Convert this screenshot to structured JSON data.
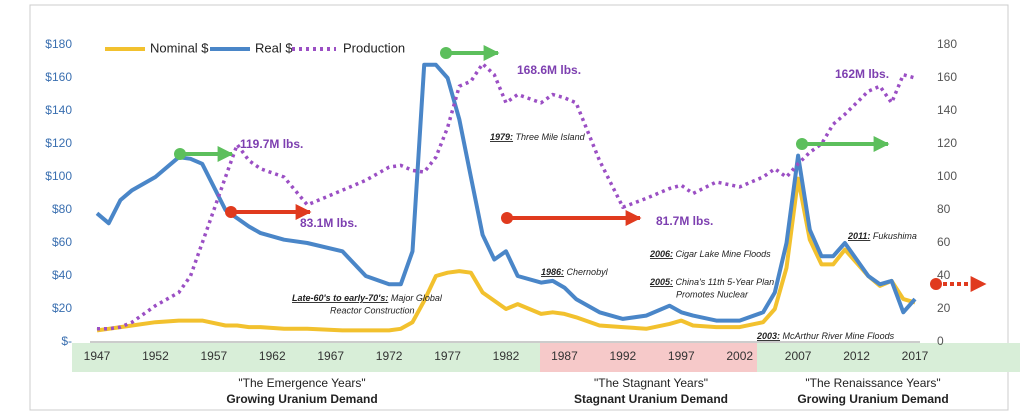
{
  "chart_data": {
    "type": "line",
    "x": [
      1947,
      1948,
      1949,
      1950,
      1952,
      1954,
      1955,
      1956,
      1958,
      1959,
      1960,
      1961,
      1963,
      1965,
      1968,
      1970,
      1972,
      1973,
      1974,
      1975,
      1976,
      1977,
      1978,
      1979,
      1980,
      1981,
      1982,
      1983,
      1985,
      1986,
      1987,
      1988,
      1990,
      1992,
      1994,
      1996,
      1997,
      1998,
      2000,
      2002,
      2004,
      2005,
      2006,
      2007,
      2008,
      2009,
      2010,
      2011,
      2012,
      2013,
      2014,
      2015,
      2016,
      2017
    ],
    "series": [
      {
        "name": "Nominal $",
        "color": "#f2c12e",
        "values": [
          7,
          8,
          9,
          10,
          12,
          13,
          13,
          13,
          10,
          10,
          9,
          9,
          8,
          8,
          7,
          7,
          7,
          8,
          12,
          25,
          40,
          42,
          43,
          42,
          30,
          25,
          20,
          23,
          17,
          18,
          17,
          15,
          10,
          9,
          8,
          11,
          13,
          10,
          9,
          9,
          12,
          20,
          45,
          99,
          62,
          47,
          47,
          56,
          48,
          40,
          34,
          37,
          26,
          24
        ]
      },
      {
        "name": "Real $",
        "color": "#4a86c8",
        "values": [
          78,
          72,
          86,
          92,
          100,
          112,
          111,
          108,
          80,
          75,
          70,
          66,
          62,
          60,
          55,
          40,
          35,
          35,
          55,
          168,
          168,
          160,
          135,
          100,
          65,
          50,
          55,
          40,
          36,
          37,
          33,
          26,
          18,
          14,
          16,
          22,
          18,
          16,
          13,
          13,
          18,
          30,
          60,
          113,
          68,
          52,
          52,
          60,
          50,
          40,
          35,
          37,
          18,
          26
        ]
      },
      {
        "name": "Production",
        "color": "#9b4fc4",
        "axis": "y2",
        "dashed": true,
        "values": [
          8,
          8,
          9,
          12,
          22,
          30,
          40,
          60,
          100,
          119.7,
          110,
          105,
          100,
          83.1,
          92,
          98,
          106,
          107,
          104,
          103,
          112,
          130,
          155,
          158,
          168.6,
          162,
          145,
          150,
          145,
          150,
          148,
          145,
          110,
          81.7,
          87,
          93,
          95,
          90,
          97,
          94,
          100,
          105,
          100,
          108,
          115,
          120,
          132,
          138,
          145,
          152,
          155,
          145,
          162,
          160
        ]
      }
    ],
    "xlim": [
      1947,
      2017
    ],
    "xticks": [
      1947,
      1952,
      1957,
      1962,
      1967,
      1972,
      1977,
      1982,
      1987,
      1992,
      1997,
      2002,
      2007,
      2012,
      2017
    ],
    "ylim": [
      0,
      180
    ],
    "yticks": [
      {
        "value": 0,
        "label": "$-"
      },
      {
        "value": 20,
        "label": "$20"
      },
      {
        "value": 40,
        "label": "$40"
      },
      {
        "value": 60,
        "label": "$60"
      },
      {
        "value": 80,
        "label": "$80"
      },
      {
        "value": 100,
        "label": "$100"
      },
      {
        "value": 120,
        "label": "$120"
      },
      {
        "value": 140,
        "label": "$140"
      },
      {
        "value": 160,
        "label": "$160"
      },
      {
        "value": 180,
        "label": "$180"
      }
    ],
    "y2lim": [
      0,
      180
    ],
    "y2ticks": [
      0,
      20,
      40,
      60,
      80,
      100,
      120,
      140,
      160,
      180
    ],
    "legend": "top-left",
    "annotations": [
      {
        "date": "1979:",
        "text": [
          "Three Mile Island"
        ]
      },
      {
        "date": "1986:",
        "text": [
          "Chernobyl"
        ]
      },
      {
        "date": "Late-60's to early-70's:",
        "text": [
          "Major Global",
          "Reactor Construction"
        ]
      },
      {
        "date": "2006:",
        "text": [
          "Cigar Lake Mine Floods"
        ]
      },
      {
        "date": "2005:",
        "text": [
          "China's 11th 5-Year Plan",
          "Promotes Nuclear"
        ]
      },
      {
        "date": "2011:",
        "text": [
          "Fukushima"
        ]
      },
      {
        "date": "2003:",
        "text": [
          "McArthur River Mine Floods"
        ]
      }
    ],
    "callouts": [
      "119.7M lbs.",
      "83.1M lbs.",
      "168.6M lbs.",
      "81.7M lbs.",
      "162M lbs."
    ],
    "eras": [
      {
        "name": "\"The Emergence Years\"",
        "subtitle": "Growing Uranium Demand",
        "color": "#5fa83f"
      },
      {
        "name": "\"The Stagnant Years\"",
        "subtitle": "Stagnant Uranium Demand",
        "color": "#d62b1f"
      },
      {
        "name": "\"The Renaissance Years\"",
        "subtitle": "Growing Uranium Demand",
        "color": "#5fa83f"
      }
    ]
  }
}
